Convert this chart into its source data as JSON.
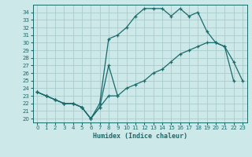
{
  "xlabel": "Humidex (Indice chaleur)",
  "bg_color": "#cce8e8",
  "grid_color": "#aacccc",
  "line_color": "#1a6b6b",
  "xlim": [
    -0.5,
    23.5
  ],
  "ylim": [
    19.5,
    35.0
  ],
  "xticks": [
    0,
    1,
    2,
    3,
    4,
    5,
    6,
    7,
    8,
    9,
    10,
    11,
    12,
    13,
    14,
    15,
    16,
    17,
    18,
    19,
    20,
    21,
    22,
    23
  ],
  "yticks": [
    20,
    21,
    22,
    23,
    24,
    25,
    26,
    27,
    28,
    29,
    30,
    31,
    32,
    33,
    34
  ],
  "series": [
    {
      "x": [
        0,
        1,
        2,
        3,
        4,
        5,
        6,
        7,
        8,
        9
      ],
      "y": [
        23.5,
        23,
        22.5,
        22,
        22,
        21.5,
        20,
        21.5,
        27,
        23
      ]
    },
    {
      "x": [
        0,
        1,
        2,
        3,
        4,
        5,
        6,
        7,
        8,
        9,
        10,
        11,
        12,
        13,
        14,
        15,
        16,
        17,
        18,
        19,
        20,
        21,
        22
      ],
      "y": [
        23.5,
        23,
        22.5,
        22,
        22,
        21.5,
        20,
        22,
        30.5,
        31,
        32,
        33.5,
        34.5,
        34.5,
        34.5,
        33.5,
        34.5,
        33.5,
        34,
        31.5,
        30,
        29.5,
        25
      ]
    },
    {
      "x": [
        0,
        1,
        2,
        3,
        4,
        5,
        6,
        7,
        8,
        9,
        10,
        11,
        12,
        13,
        14,
        15,
        16,
        17,
        18,
        19,
        20,
        21,
        22,
        23
      ],
      "y": [
        23.5,
        23,
        22.5,
        22,
        22,
        21.5,
        20,
        21.5,
        23,
        23,
        24,
        24.5,
        25,
        26,
        26.5,
        27.5,
        28.5,
        29,
        29.5,
        30,
        30,
        29.5,
        27.5,
        25
      ]
    }
  ]
}
